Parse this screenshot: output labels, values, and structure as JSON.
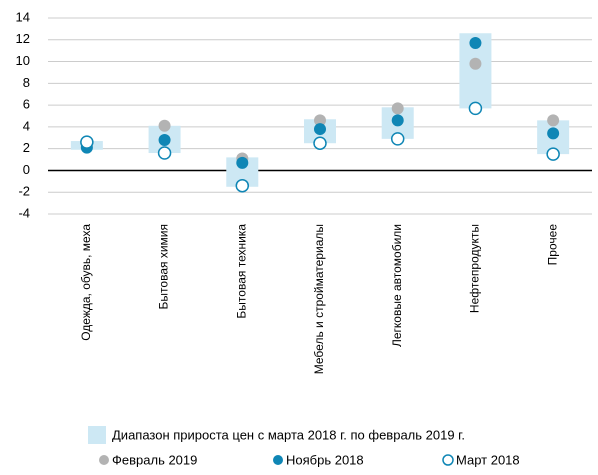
{
  "chart_data": {
    "type": "dotrange",
    "categories": [
      "Одежда, обувь, меха",
      "Бытовая химия",
      "Бытовая техника",
      "Мебель и стройматериалы",
      "Легковые автомобили",
      "Нефтепродукты",
      "Прочее"
    ],
    "range": {
      "name": "Диапазон прироста цен с марта 2018 г. по февраль 2019 г.",
      "color": "#cde8f4",
      "low": [
        1.9,
        1.6,
        -1.5,
        2.5,
        2.9,
        5.7,
        1.5
      ],
      "high": [
        2.7,
        4.1,
        1.2,
        4.7,
        5.8,
        12.6,
        4.6
      ]
    },
    "series": [
      {
        "name": "Февраль 2019",
        "color": "#b3b3b3",
        "marker": "filled",
        "values": [
          2.3,
          4.1,
          1.1,
          4.6,
          5.7,
          9.8,
          4.6
        ]
      },
      {
        "name": "Ноябрь 2018",
        "color": "#0f86b5",
        "marker": "filled",
        "values": [
          2.1,
          2.8,
          0.7,
          3.8,
          4.6,
          11.7,
          3.4
        ]
      },
      {
        "name": "Март 2018",
        "color": "#0f86b5",
        "marker": "hollow",
        "values": [
          2.6,
          1.6,
          -1.4,
          2.5,
          2.9,
          5.7,
          1.5
        ]
      }
    ],
    "ylim": [
      -4,
      14
    ],
    "yticks": [
      -4,
      -2,
      0,
      2,
      4,
      6,
      8,
      10,
      12,
      14
    ],
    "grid": true
  }
}
